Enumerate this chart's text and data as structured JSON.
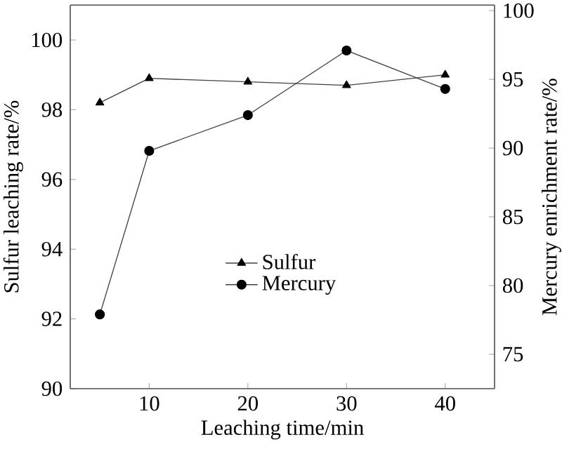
{
  "chart_data": {
    "type": "line",
    "xlabel": "Leaching time/min",
    "ylabel": "Sulfur leaching rate/%",
    "y2label": "Mercury enrichment rate/%",
    "x": [
      5,
      10,
      20,
      30,
      40
    ],
    "series": [
      {
        "name": "Sulfur",
        "color": "#404040",
        "marker": "triangle",
        "values": [
          98.2,
          98.9,
          98.8,
          98.7,
          99.0
        ]
      },
      {
        "name": "Mercury",
        "color": "#404040",
        "marker": "circle",
        "axis": "y2",
        "values": [
          77.9,
          89.8,
          92.4,
          97.1,
          94.3
        ]
      }
    ],
    "xlim": [
      2,
      45
    ],
    "xticks": [
      10,
      20,
      30,
      40
    ],
    "ylim": [
      90,
      101
    ],
    "yticks": [
      90,
      92,
      94,
      96,
      98,
      100
    ],
    "y2lim": [
      72.5,
      100.4
    ],
    "y2ticks": [
      75,
      80,
      85,
      90,
      95,
      100
    ],
    "legend": "center",
    "grid": false,
    "line_style": "solid"
  }
}
